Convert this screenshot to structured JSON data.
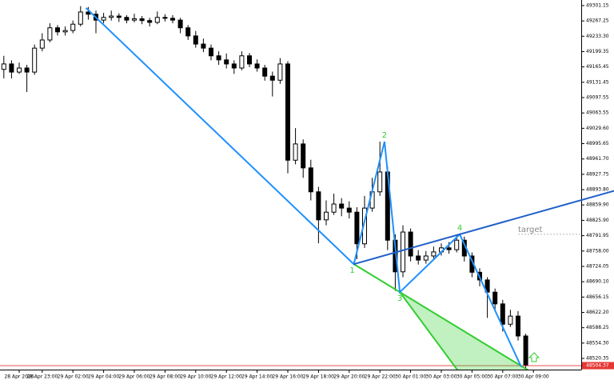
{
  "chart_data": {
    "type": "candlestick",
    "xlim": [
      -0.5,
      75.23
    ],
    "ylim": [
      48495.6,
      49313.5
    ],
    "xticks": [
      {
        "value": 2,
        "label": "28 Apr 2026"
      },
      {
        "value": 5,
        "label": "28 Apr 23:00"
      },
      {
        "value": 9,
        "label": "29 Apr 02:00"
      },
      {
        "value": 13,
        "label": "29 Apr 04:00"
      },
      {
        "value": 17,
        "label": "29 Apr 06:00"
      },
      {
        "value": 21,
        "label": "29 Apr 08:00"
      },
      {
        "value": 25,
        "label": "29 Apr 10:00"
      },
      {
        "value": 29,
        "label": "29 Apr 12:00"
      },
      {
        "value": 33,
        "label": "29 Apr 14:00"
      },
      {
        "value": 37,
        "label": "29 Apr 16:00"
      },
      {
        "value": 41,
        "label": "29 Apr 18:00"
      },
      {
        "value": 45,
        "label": "29 Apr 20:00"
      },
      {
        "value": 49,
        "label": "29 Apr 22:00"
      },
      {
        "value": 53,
        "label": "30 Apr 01:00"
      },
      {
        "value": 57,
        "label": "30 Apr 03:00"
      },
      {
        "value": 61,
        "label": "30 Apr 05:00"
      },
      {
        "value": 65,
        "label": "30 Apr 07:00"
      },
      {
        "value": 69,
        "label": "30 Apr 09:00"
      }
    ],
    "yticks": [
      49301.15,
      49267.25,
      {
        "value": 49233.3,
        "label": "49233.30"
      },
      49199.35,
      49165.45,
      49131.45,
      49097.55,
      49063.55,
      {
        "value": 49029.6,
        "label": "49029.60"
      },
      48995.65,
      {
        "value": 48961.7,
        "label": "48961.70"
      },
      48927.75,
      {
        "value": 48893.8,
        "label": "48893.80"
      },
      {
        "value": 48859.9,
        "label": "48859.90"
      },
      {
        "value": 48825.9,
        "label": "48825.90"
      },
      48791.95,
      {
        "value": 48758,
        "label": "48758.00"
      },
      48724.05,
      {
        "value": 48690.1,
        "label": "48690.10"
      },
      48656.15,
      {
        "value": 48622.2,
        "label": "48622.20"
      },
      48588.25,
      {
        "value": 48554.3,
        "label": "48554.30"
      },
      48520.35
    ],
    "up_color": "#ffffff",
    "down_color": "#000000",
    "open": [
      49160,
      49172,
      49154,
      49163,
      49154,
      49207,
      49225,
      49252,
      49243,
      49246,
      49260,
      49287,
      49282,
      49269,
      49275,
      49278,
      49275,
      49269,
      49272,
      49268,
      49264,
      49275,
      49273,
      49269,
      49252,
      49234,
      49216,
      49207,
      49190,
      49181,
      49172,
      49163,
      49190,
      49172,
      49163,
      49145,
      49136,
      49172,
      48959,
      48995,
      48942,
      48889,
      48827,
      48844,
      48862,
      48853,
      48844,
      48774,
      48853,
      48889,
      48933,
      48782,
      48712,
      48800,
      48747,
      48738,
      48747,
      48756,
      48765,
      48761,
      48782,
      48747,
      48711,
      48694,
      48667,
      48641,
      48596,
      48614,
      48570
    ],
    "high": [
      49190,
      49180,
      49175,
      49170,
      49215,
      49240,
      49262,
      49258,
      49255,
      49268,
      49300,
      49298,
      49290,
      49285,
      49290,
      49284,
      49280,
      49283,
      49278,
      49274,
      49288,
      49282,
      49280,
      49274,
      49258,
      49245,
      49228,
      49215,
      49200,
      49195,
      49180,
      49200,
      49196,
      49182,
      49170,
      49155,
      49185,
      49178,
      49030,
      49005,
      48960,
      48900,
      48870,
      48885,
      48875,
      48868,
      48855,
      48880,
      48920,
      49000,
      48945,
      48795,
      48815,
      48808,
      48760,
      48758,
      48768,
      48775,
      48778,
      48795,
      48790,
      48755,
      48720,
      48700,
      48675,
      48650,
      48628,
      48625,
      48575
    ],
    "low": [
      49140,
      49140,
      49150,
      49110,
      49148,
      49200,
      49220,
      49235,
      49235,
      49240,
      49255,
      49270,
      49240,
      49262,
      49268,
      49265,
      49262,
      49264,
      49260,
      49255,
      49260,
      49266,
      49262,
      49240,
      49225,
      49208,
      49198,
      49180,
      49170,
      49162,
      49150,
      49158,
      49165,
      49155,
      49135,
      49100,
      49128,
      48930,
      48950,
      48920,
      48870,
      48775,
      48815,
      48838,
      48835,
      48830,
      48740,
      48765,
      48845,
      48880,
      48760,
      48670,
      48700,
      48735,
      48728,
      48730,
      48740,
      48748,
      48752,
      48755,
      48735,
      48700,
      48680,
      48610,
      48625,
      48580,
      48590,
      48560,
      48496
    ],
    "close": [
      49172,
      49154,
      49163,
      49154,
      49207,
      49225,
      49252,
      49243,
      49246,
      49260,
      49287,
      49282,
      49269,
      49275,
      49278,
      49275,
      49269,
      49272,
      49268,
      49264,
      49275,
      49273,
      49269,
      49252,
      49234,
      49216,
      49207,
      49190,
      49181,
      49172,
      49163,
      49190,
      49172,
      49163,
      49145,
      49136,
      49172,
      48959,
      48995,
      48942,
      48889,
      48827,
      48844,
      48862,
      48853,
      48844,
      48774,
      48853,
      48889,
      48933,
      48782,
      48712,
      48800,
      48747,
      48738,
      48747,
      48756,
      48765,
      48761,
      48782,
      48747,
      48711,
      48694,
      48667,
      48641,
      48596,
      48614,
      48570,
      48504.37
    ],
    "last_price": 48504.37,
    "last_price_color": "#e53935",
    "zigzag": {
      "x": [
        10.7,
        45.6,
        49.6,
        51.6,
        59.4,
        67.4
      ],
      "price": [
        49296,
        48729,
        49000,
        48667,
        48795,
        48502
      ],
      "labels": [
        null,
        "1",
        "2",
        "3",
        "4",
        null
      ],
      "color": "#1e90ff",
      "trend_color": "#1f5fc8"
    },
    "wedge": {
      "end_x": 59.7,
      "end_price": 48481,
      "color": "#32cd32"
    },
    "target": {
      "label": "target",
      "price": 48795
    }
  }
}
